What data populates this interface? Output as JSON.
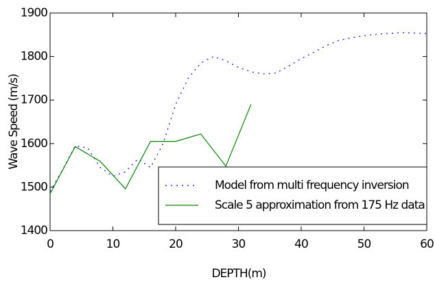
{
  "chart_data": {
    "type": "line",
    "xlabel": "DEPTH(m)",
    "ylabel": "Wave Speed (m/s)",
    "xlim": [
      0,
      60
    ],
    "xticks": [
      0,
      10,
      20,
      30,
      40,
      50,
      60
    ],
    "ylim": [
      1400,
      1900
    ],
    "yticks": [
      1400,
      1500,
      1600,
      1700,
      1800,
      1900
    ],
    "legend": "lower right",
    "series": [
      {
        "name": "Model from multi frequency inversion",
        "color": "#0000ff",
        "style": "dotted",
        "x": [
          0,
          2,
          4,
          6,
          8,
          10,
          12,
          14,
          16,
          18,
          20,
          22,
          24,
          26,
          28,
          30,
          32,
          34,
          36,
          38,
          40,
          42,
          44,
          46,
          48,
          50,
          52,
          54,
          56,
          58,
          60
        ],
        "values": [
          1490,
          1540,
          1595,
          1590,
          1545,
          1525,
          1535,
          1565,
          1545,
          1600,
          1690,
          1750,
          1785,
          1800,
          1790,
          1775,
          1765,
          1760,
          1762,
          1778,
          1795,
          1810,
          1825,
          1837,
          1843,
          1848,
          1851,
          1853,
          1855,
          1854,
          1853
        ]
      },
      {
        "name": "Scale 5 approximation from 175 Hz data",
        "color": "#008000",
        "style": "solid",
        "x": [
          0,
          4,
          8,
          12,
          16,
          20,
          24,
          28,
          32
        ],
        "values": [
          1485,
          1593,
          1559,
          1496,
          1605,
          1605,
          1622,
          1548,
          1690
        ]
      }
    ]
  }
}
